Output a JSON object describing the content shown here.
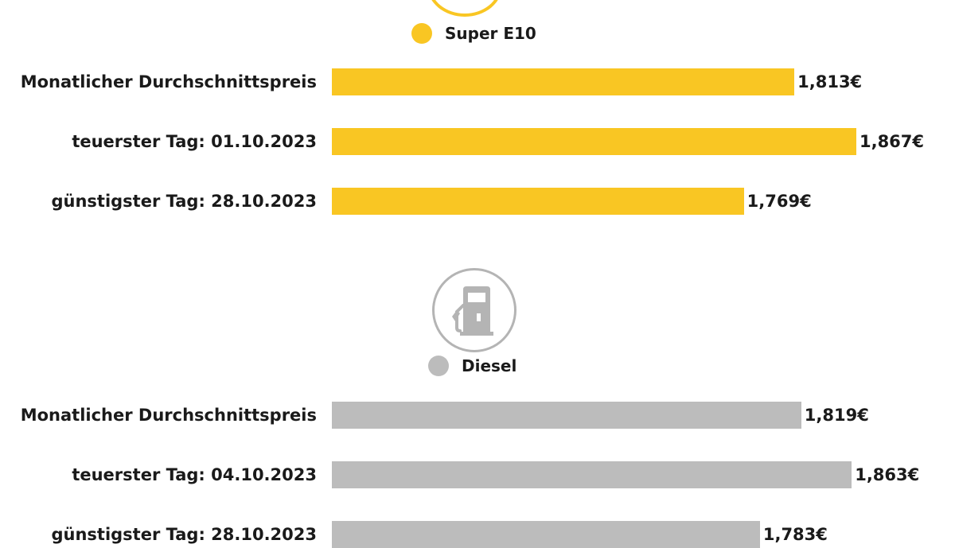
{
  "colors": {
    "super_e10": "#f9c623",
    "diesel": "#bcbcbc"
  },
  "icons": {
    "top": "circle-icon",
    "diesel": "fuel-pump-icon"
  },
  "chart_data": [
    {
      "type": "bar",
      "orientation": "horizontal",
      "legend": "Super E10",
      "categories": [
        "Monatlicher Durchschnittspreis",
        "teuerster Tag: 01.10.2023",
        "günstigster Tag: 28.10.2023"
      ],
      "values": [
        1.813,
        1.867,
        1.769
      ],
      "value_labels": [
        "1,813€",
        "1,867€",
        "1,769€"
      ]
    },
    {
      "type": "bar",
      "orientation": "horizontal",
      "legend": "Diesel",
      "categories": [
        "Monatlicher Durchschnittspreis",
        "teuerster Tag: 04.10.2023",
        "günstigster Tag: 28.10.2023"
      ],
      "values": [
        1.819,
        1.863,
        1.783
      ],
      "value_labels": [
        "1,819€",
        "1,863€",
        "1,783€"
      ]
    }
  ]
}
